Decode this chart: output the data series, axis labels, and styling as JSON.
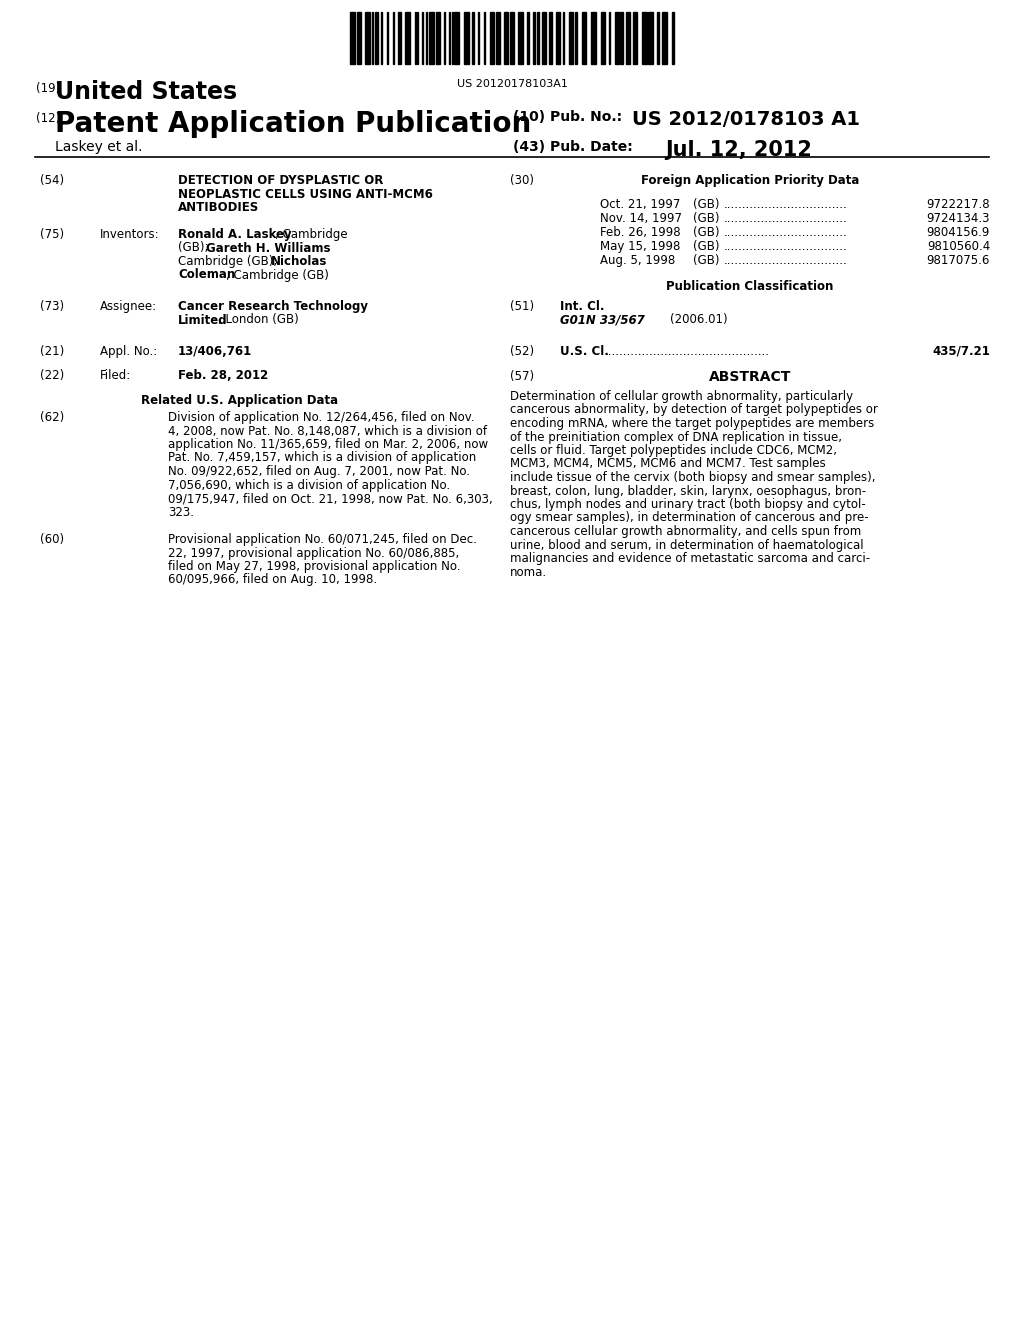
{
  "background_color": "#ffffff",
  "barcode_text": "US 20120178103A1",
  "label_19": "(19)",
  "united_states": "United States",
  "label_12": "(12)",
  "patent_app_pub": "Patent Application Publication",
  "label_10": "(10) Pub. No.:",
  "pub_no": "US 2012/0178103 A1",
  "laskey_et_al": "Laskey et al.",
  "label_43": "(43) Pub. Date:",
  "pub_date": "Jul. 12, 2012",
  "label_54": "(54)",
  "title_line1": "DETECTION OF DYSPLASTIC OR",
  "title_line2": "NEOPLASTIC CELLS USING ANTI-MCM6",
  "title_line3": "ANTIBODIES",
  "label_75": "(75)",
  "inventors_label": "Inventors:",
  "inv_line1_bold": "Ronald A. Laskey",
  "inv_line1_normal": ", Cambridge",
  "inv_line2_normal": "(GB); ",
  "inv_line2_bold": "Gareth H. Williams",
  "inv_line3_normal": "Cambridge (GB); ",
  "inv_line3_bold": "Nicholas",
  "inv_line4_bold": "Coleman",
  "inv_line4_normal": ", Cambridge (GB)",
  "label_73": "(73)",
  "assignee_label": "Assignee:",
  "assignee_bold1": "Cancer Research Technology",
  "assignee_bold2": "Limited",
  "assignee_normal2": ", London (GB)",
  "label_21": "(21)",
  "appl_no_label": "Appl. No.:",
  "appl_no_text": "13/406,761",
  "label_22": "(22)",
  "filed_label": "Filed:",
  "filed_text": "Feb. 28, 2012",
  "related_us_header": "Related U.S. Application Data",
  "label_62": "(62)",
  "related_62_lines": [
    "Division of application No. 12/264,456, filed on Nov.",
    "4, 2008, now Pat. No. 8,148,087, which is a division of",
    "application No. 11/365,659, filed on Mar. 2, 2006, now",
    "Pat. No. 7,459,157, which is a division of application",
    "No. 09/922,652, filed on Aug. 7, 2001, now Pat. No.",
    "7,056,690, which is a division of application No.",
    "09/175,947, filed on Oct. 21, 1998, now Pat. No. 6,303,",
    "323."
  ],
  "label_60": "(60)",
  "related_60_lines": [
    "Provisional application No. 60/071,245, filed on Dec.",
    "22, 1997, provisional application No. 60/086,885,",
    "filed on May 27, 1998, provisional application No.",
    "60/095,966, filed on Aug. 10, 1998."
  ],
  "label_30": "(30)",
  "foreign_app_header": "Foreign Application Priority Data",
  "priority_data": [
    {
      "date": "Oct. 21, 1997",
      "country": "(GB)",
      "number": "9722217.8"
    },
    {
      "date": "Nov. 14, 1997",
      "country": "(GB)",
      "number": "9724134.3"
    },
    {
      "date": "Feb. 26, 1998",
      "country": "(GB)",
      "number": "9804156.9"
    },
    {
      "date": "May 15, 1998",
      "country": "(GB)",
      "number": "9810560.4"
    },
    {
      "date": "Aug. 5, 1998",
      "country": "(GB)",
      "number": "9817075.6"
    }
  ],
  "pub_class_header": "Publication Classification",
  "label_51": "(51)",
  "int_cl_label": "Int. Cl.",
  "int_cl_class": "G01N 33/567",
  "int_cl_year": "(2006.01)",
  "label_52": "(52)",
  "us_cl_label": "U.S. Cl.",
  "us_cl_number": "435/7.21",
  "label_57": "(57)",
  "abstract_header": "ABSTRACT",
  "abstract_lines": [
    "Determination of cellular growth abnormality, particularly",
    "cancerous abnormality, by detection of target polypeptides or",
    "encoding mRNA, where the target polypeptides are members",
    "of the preinitiation complex of DNA replication in tissue,",
    "cells or fluid. Target polypeptides include CDC6, MCM2,",
    "MCM3, MCM4, MCM5, MCM6 and MCM7. Test samples",
    "include tissue of the cervix (both biopsy and smear samples),",
    "breast, colon, lung, bladder, skin, larynx, oesophagus, bron-",
    "chus, lymph nodes and urinary tract (both biopsy and cytol-",
    "ogy smear samples), in determination of cancerous and pre-",
    "cancerous cellular growth abnormality, and cells spun from",
    "urine, blood and serum, in determination of haematological",
    "malignancies and evidence of metastatic sarcoma and carci-",
    "noma."
  ]
}
